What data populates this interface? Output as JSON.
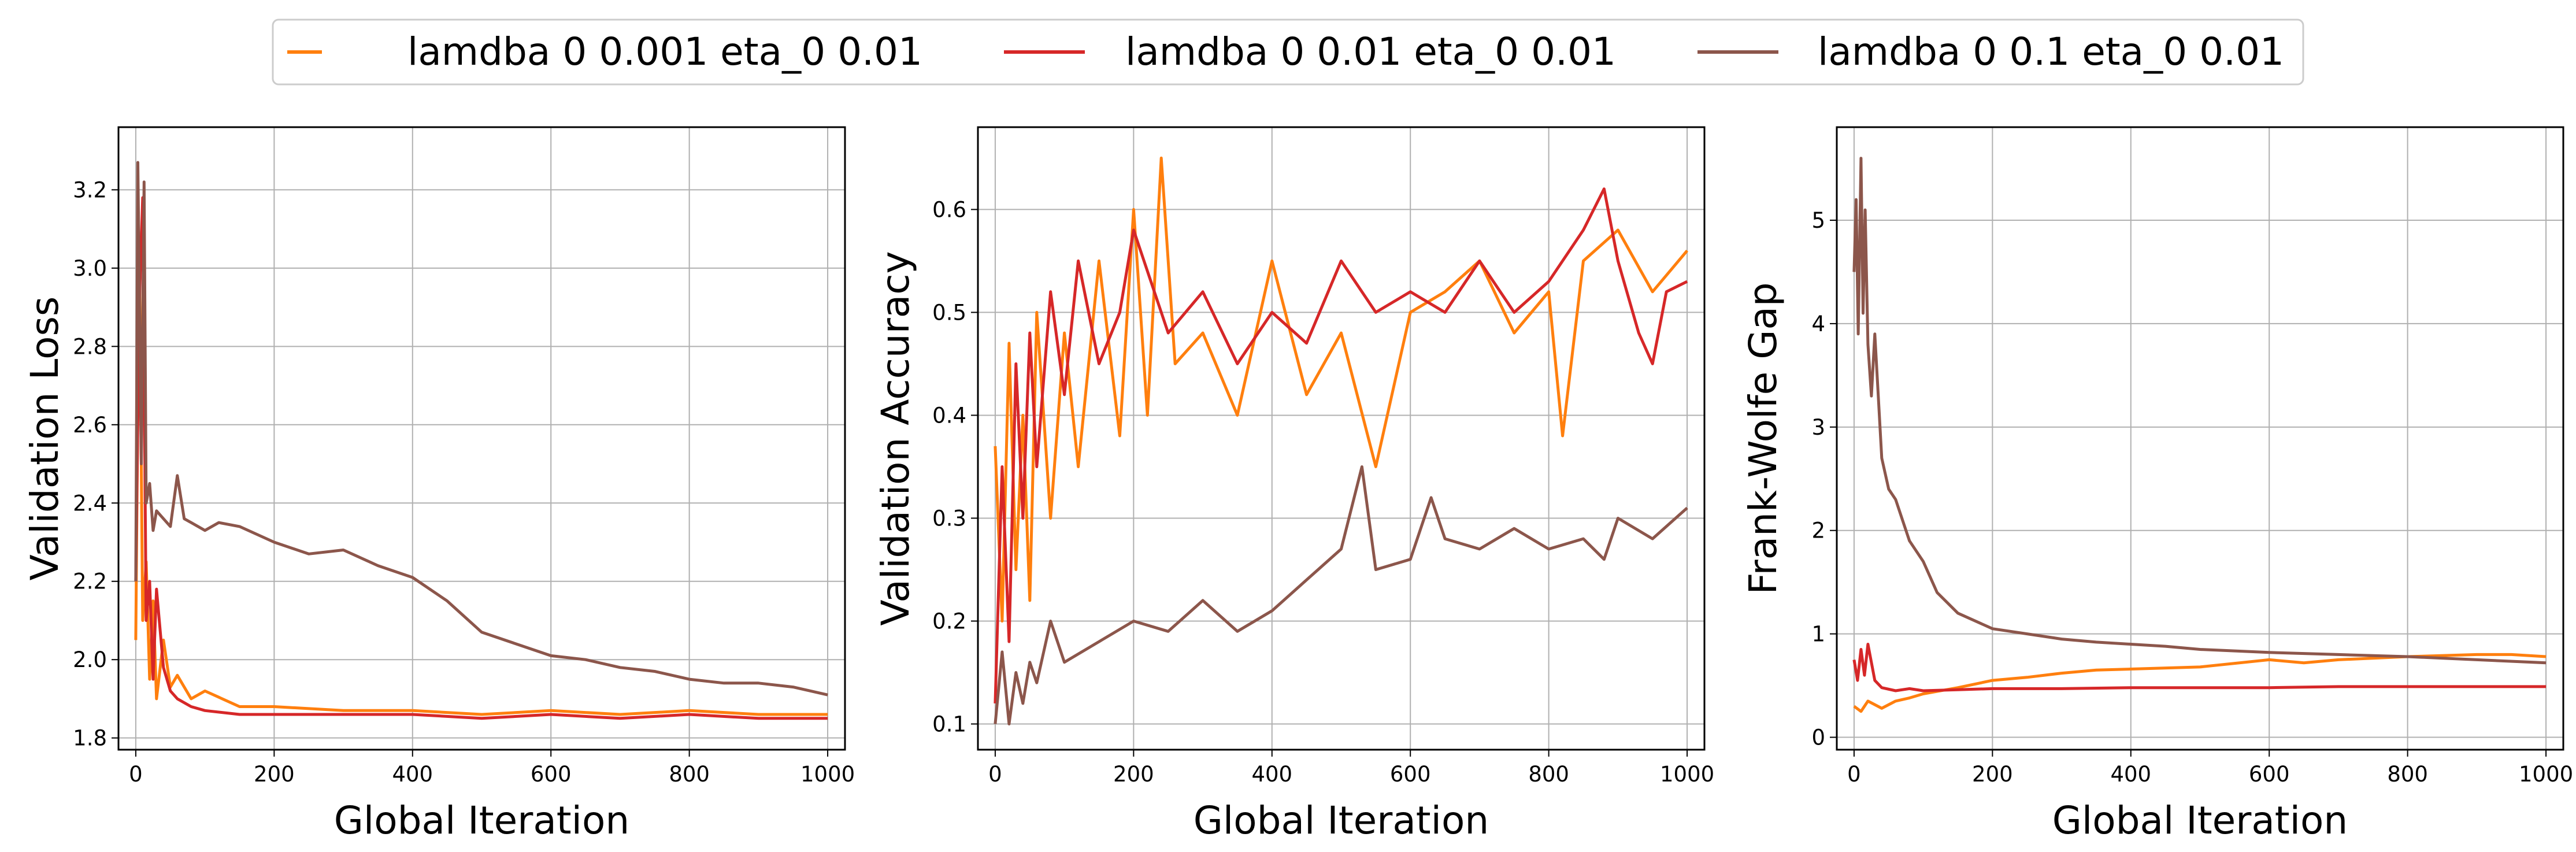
{
  "legend": {
    "placement": "top-center",
    "entries": [
      {
        "label": "lamdba 0 0.001 eta_0 0.01",
        "color": "#ff7f0e"
      },
      {
        "label": "lamdba 0 0.01 eta_0 0.01",
        "color": "#d62728"
      },
      {
        "label": "lamdba 0 0.1 eta_0 0.01",
        "color": "#8c564b"
      }
    ]
  },
  "chart_data": [
    {
      "type": "line",
      "xlabel": "Global Iteration",
      "ylabel": "Validation Loss",
      "xlim": [
        -25,
        1025
      ],
      "ylim": [
        1.77,
        3.36
      ],
      "xticks": [
        0,
        200,
        400,
        600,
        800,
        1000
      ],
      "yticks": [
        1.8,
        2.0,
        2.2,
        2.4,
        2.6,
        2.8,
        3.0,
        3.2
      ],
      "ytick_labels": [
        "1.8",
        "2.0",
        "2.2",
        "2.4",
        "2.6",
        "2.8",
        "3.0",
        "3.2"
      ],
      "grid": true,
      "series": [
        {
          "name": "lamdba 0 0.001 eta_0 0.01",
          "color": "#ff7f0e",
          "x": [
            0,
            5,
            10,
            15,
            20,
            25,
            30,
            40,
            50,
            60,
            80,
            100,
            150,
            200,
            300,
            400,
            500,
            600,
            700,
            800,
            900,
            1000
          ],
          "y": [
            2.05,
            3.08,
            2.1,
            2.25,
            1.95,
            2.15,
            1.9,
            2.05,
            1.93,
            1.96,
            1.9,
            1.92,
            1.88,
            1.88,
            1.87,
            1.87,
            1.86,
            1.87,
            1.86,
            1.87,
            1.86,
            1.86
          ]
        },
        {
          "name": "lamdba 0 0.01 eta_0 0.01",
          "color": "#d62728",
          "x": [
            0,
            5,
            10,
            15,
            20,
            25,
            30,
            40,
            50,
            60,
            80,
            100,
            150,
            200,
            300,
            400,
            500,
            600,
            700,
            800,
            900,
            1000
          ],
          "y": [
            2.2,
            2.9,
            3.18,
            2.1,
            2.2,
            1.95,
            2.18,
            1.98,
            1.92,
            1.9,
            1.88,
            1.87,
            1.86,
            1.86,
            1.86,
            1.86,
            1.85,
            1.86,
            1.85,
            1.86,
            1.85,
            1.85
          ]
        },
        {
          "name": "lamdba 0 0.1 eta_0 0.01",
          "color": "#8c564b",
          "x": [
            0,
            3,
            8,
            12,
            15,
            20,
            25,
            30,
            40,
            50,
            60,
            70,
            80,
            100,
            120,
            150,
            200,
            250,
            300,
            350,
            400,
            450,
            500,
            550,
            600,
            650,
            700,
            750,
            800,
            850,
            900,
            950,
            1000
          ],
          "y": [
            2.2,
            3.27,
            2.5,
            3.22,
            2.4,
            2.45,
            2.33,
            2.38,
            2.36,
            2.34,
            2.47,
            2.36,
            2.35,
            2.33,
            2.35,
            2.34,
            2.3,
            2.27,
            2.28,
            2.24,
            2.21,
            2.15,
            2.07,
            2.04,
            2.01,
            2.0,
            1.98,
            1.97,
            1.95,
            1.94,
            1.94,
            1.93,
            1.91
          ]
        }
      ]
    },
    {
      "type": "line",
      "xlabel": "Global Iteration",
      "ylabel": "Validation Accuracy",
      "xlim": [
        -25,
        1025
      ],
      "ylim": [
        0.075,
        0.68
      ],
      "xticks": [
        0,
        200,
        400,
        600,
        800,
        1000
      ],
      "yticks": [
        0.1,
        0.2,
        0.3,
        0.4,
        0.5,
        0.6
      ],
      "ytick_labels": [
        "0.1",
        "0.2",
        "0.3",
        "0.4",
        "0.5",
        "0.6"
      ],
      "grid": true,
      "series": [
        {
          "name": "lamdba 0 0.001 eta_0 0.01",
          "color": "#ff7f0e",
          "x": [
            0,
            10,
            20,
            30,
            40,
            50,
            60,
            80,
            100,
            120,
            150,
            180,
            200,
            220,
            240,
            260,
            300,
            350,
            400,
            450,
            500,
            550,
            600,
            650,
            700,
            750,
            800,
            820,
            850,
            900,
            950,
            1000
          ],
          "y": [
            0.37,
            0.2,
            0.47,
            0.25,
            0.4,
            0.22,
            0.5,
            0.3,
            0.48,
            0.35,
            0.55,
            0.38,
            0.6,
            0.4,
            0.65,
            0.45,
            0.48,
            0.4,
            0.55,
            0.42,
            0.48,
            0.35,
            0.5,
            0.52,
            0.55,
            0.48,
            0.52,
            0.38,
            0.55,
            0.58,
            0.52,
            0.56
          ]
        },
        {
          "name": "lamdba 0 0.01 eta_0 0.01",
          "color": "#d62728",
          "x": [
            0,
            10,
            20,
            30,
            40,
            50,
            60,
            80,
            100,
            120,
            150,
            180,
            200,
            250,
            300,
            350,
            400,
            450,
            500,
            550,
            600,
            650,
            700,
            750,
            800,
            850,
            880,
            900,
            930,
            950,
            970,
            1000
          ],
          "y": [
            0.12,
            0.35,
            0.18,
            0.45,
            0.3,
            0.48,
            0.35,
            0.52,
            0.42,
            0.55,
            0.45,
            0.5,
            0.58,
            0.48,
            0.52,
            0.45,
            0.5,
            0.47,
            0.55,
            0.5,
            0.52,
            0.5,
            0.55,
            0.5,
            0.53,
            0.58,
            0.62,
            0.55,
            0.48,
            0.45,
            0.52,
            0.53
          ]
        },
        {
          "name": "lamdba 0 0.1 eta_0 0.01",
          "color": "#8c564b",
          "x": [
            0,
            10,
            20,
            30,
            40,
            50,
            60,
            80,
            100,
            150,
            200,
            250,
            300,
            350,
            400,
            450,
            500,
            530,
            550,
            600,
            630,
            650,
            700,
            750,
            800,
            850,
            880,
            900,
            950,
            1000
          ],
          "y": [
            0.1,
            0.17,
            0.1,
            0.15,
            0.12,
            0.16,
            0.14,
            0.2,
            0.16,
            0.18,
            0.2,
            0.19,
            0.22,
            0.19,
            0.21,
            0.24,
            0.27,
            0.35,
            0.25,
            0.26,
            0.32,
            0.28,
            0.27,
            0.29,
            0.27,
            0.28,
            0.26,
            0.3,
            0.28,
            0.31
          ]
        }
      ]
    },
    {
      "type": "line",
      "xlabel": "Global Iteration",
      "ylabel": "Frank-Wolfe Gap",
      "xlim": [
        -25,
        1025
      ],
      "ylim": [
        -0.12,
        5.9
      ],
      "xticks": [
        0,
        200,
        400,
        600,
        800,
        1000
      ],
      "yticks": [
        0,
        1,
        2,
        3,
        4,
        5
      ],
      "ytick_labels": [
        "0",
        "1",
        "2",
        "3",
        "4",
        "5"
      ],
      "grid": true,
      "series": [
        {
          "name": "lamdba 0 0.001 eta_0 0.01",
          "color": "#ff7f0e",
          "x": [
            0,
            10,
            20,
            40,
            60,
            80,
            100,
            150,
            200,
            250,
            300,
            350,
            400,
            500,
            600,
            650,
            700,
            800,
            900,
            950,
            1000
          ],
          "y": [
            0.3,
            0.25,
            0.35,
            0.28,
            0.35,
            0.38,
            0.42,
            0.48,
            0.55,
            0.58,
            0.62,
            0.65,
            0.66,
            0.68,
            0.75,
            0.72,
            0.75,
            0.78,
            0.8,
            0.8,
            0.78
          ]
        },
        {
          "name": "lamdba 0 0.01 eta_0 0.01",
          "color": "#d62728",
          "x": [
            0,
            5,
            10,
            15,
            20,
            30,
            40,
            60,
            80,
            100,
            150,
            200,
            300,
            400,
            500,
            600,
            700,
            800,
            900,
            1000
          ],
          "y": [
            0.75,
            0.55,
            0.85,
            0.6,
            0.9,
            0.55,
            0.48,
            0.45,
            0.47,
            0.45,
            0.46,
            0.47,
            0.47,
            0.48,
            0.48,
            0.48,
            0.49,
            0.49,
            0.49,
            0.49
          ]
        },
        {
          "name": "lamdba 0 0.1 eta_0 0.01",
          "color": "#8c564b",
          "x": [
            0,
            3,
            6,
            10,
            13,
            16,
            20,
            25,
            30,
            40,
            50,
            60,
            80,
            100,
            120,
            150,
            200,
            250,
            300,
            350,
            400,
            450,
            500,
            600,
            700,
            800,
            900,
            1000
          ],
          "y": [
            4.5,
            5.2,
            3.9,
            5.6,
            4.1,
            5.1,
            3.8,
            3.3,
            3.9,
            2.7,
            2.4,
            2.3,
            1.9,
            1.7,
            1.4,
            1.2,
            1.05,
            1.0,
            0.95,
            0.92,
            0.9,
            0.88,
            0.85,
            0.82,
            0.8,
            0.78,
            0.75,
            0.72
          ]
        }
      ]
    }
  ]
}
